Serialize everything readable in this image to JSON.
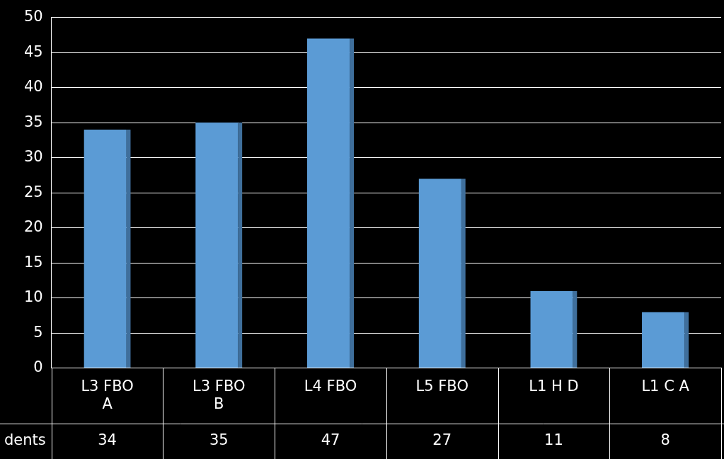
{
  "chart_data": {
    "type": "bar",
    "categories": [
      "L3 FBO A",
      "L3 FBO B",
      "L4 FBO",
      "L5 FBO",
      "L1 H D",
      "L1 C A"
    ],
    "series": [
      {
        "name": "dents",
        "color": "#5b9bd5",
        "values": [
          34,
          35,
          47,
          27,
          11,
          8
        ]
      }
    ],
    "ylim": [
      0,
      50
    ],
    "yticks": [
      0,
      5,
      10,
      15,
      20,
      25,
      30,
      35,
      40,
      45,
      50
    ],
    "grid": true
  }
}
